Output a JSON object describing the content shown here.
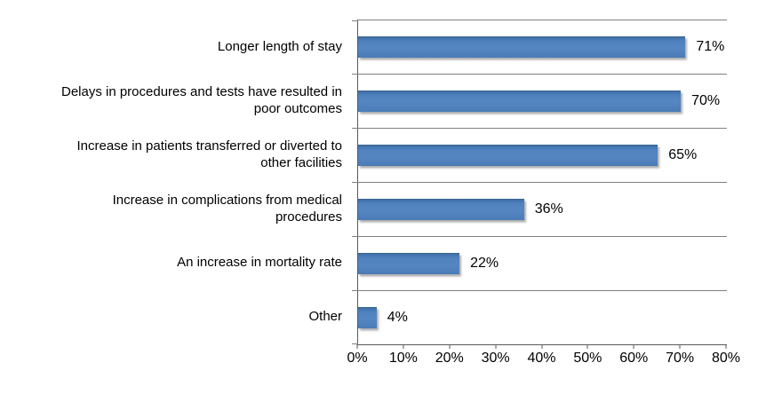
{
  "chart_data": {
    "type": "bar",
    "orientation": "horizontal",
    "title": "",
    "xlabel": "",
    "ylabel": "",
    "categories": [
      "Longer length of stay",
      "Delays in procedures and tests have resulted in poor outcomes",
      "Increase in patients transferred or diverted to other facilities",
      "Increase in complications from medical procedures",
      "An increase in mortality rate",
      "Other"
    ],
    "label_lines": [
      [
        "Longer length of stay"
      ],
      [
        "Delays in procedures and tests have resulted in",
        "poor outcomes"
      ],
      [
        "Increase in patients transferred or diverted to",
        "other facilities"
      ],
      [
        "Increase in complications from medical",
        "procedures"
      ],
      [
        "An increase in mortality rate"
      ],
      [
        "Other"
      ]
    ],
    "values": [
      71,
      70,
      65,
      36,
      22,
      4
    ],
    "value_labels": [
      "71%",
      "70%",
      "65%",
      "36%",
      "22%",
      "4%"
    ],
    "xlim": [
      0,
      80
    ],
    "x_ticks": [
      "0%",
      "10%",
      "20%",
      "30%",
      "40%",
      "50%",
      "60%",
      "70%",
      "80%"
    ],
    "grid": "category-boundaries-only",
    "legend": "none",
    "colors": {
      "bar": "#4F81BD",
      "bar_border": "#39648F",
      "gridline": "#808080",
      "axis": "#595959",
      "text": "#000000",
      "background": "#FFFFFF"
    }
  }
}
